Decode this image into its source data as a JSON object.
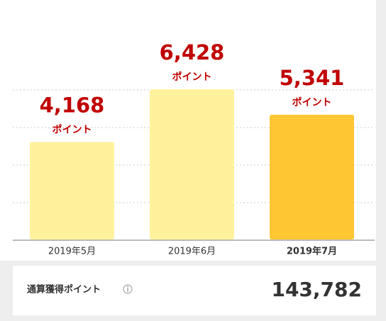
{
  "chart_data": {
    "type": "bar",
    "categories": [
      "2019年5月",
      "2019年6月",
      "2019年7月"
    ],
    "values": [
      4168,
      6428,
      5341
    ],
    "value_labels": [
      "4,168",
      "6,428",
      "5,341"
    ],
    "value_unit": "ポイント",
    "colors": [
      "#fff29c",
      "#fff29c",
      "#ffc733"
    ],
    "ylim": [
      0,
      6428
    ]
  },
  "total": {
    "label": "通算獲得ポイント",
    "value": "143,782"
  }
}
